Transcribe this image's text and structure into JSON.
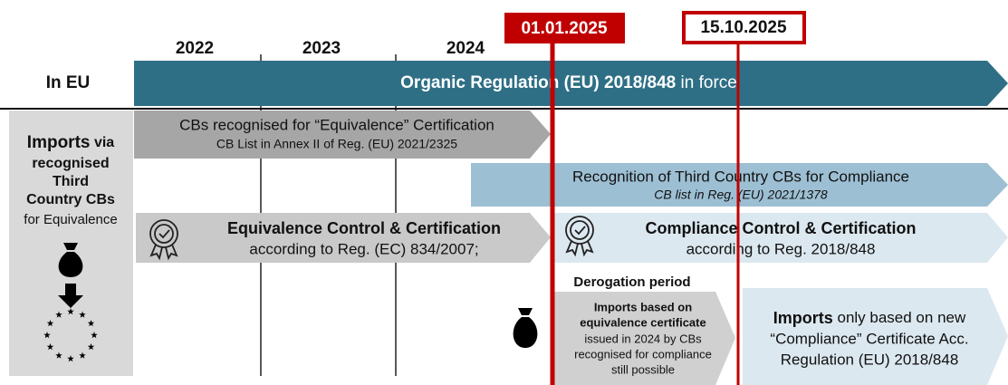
{
  "years": [
    "2022",
    "2023",
    "2024"
  ],
  "milestones": [
    "01.01.2025",
    "15.10.2025"
  ],
  "row_label": "In EU",
  "regulation": {
    "title": "Organic Regulation (EU) 2018/848",
    "suffix": "in force"
  },
  "sidebar": {
    "heading": "Imports",
    "lines": [
      "via",
      "recognised",
      "Third",
      "Country CBs"
    ],
    "note": "for Equivalence"
  },
  "equivalence_cbs": {
    "title": "CBs recognised for “Equivalence” Certification",
    "subtitle": "CB List in Annex II of Reg. (EU) 2021/2325"
  },
  "compliance_cbs": {
    "title": "Recognition of Third Country CBs for Compliance",
    "subtitle": "CB list in Reg. (EU) 2021/1378"
  },
  "equivalence_control": {
    "title": "Equivalence Control & Certification",
    "subtitle": "according to Reg. (EC) 834/2007;"
  },
  "compliance_control": {
    "title": "Compliance Control & Certification",
    "subtitle": "according to Reg. 2018/848"
  },
  "derogation": {
    "label": "Derogation period",
    "bold_lines": [
      "Imports based on",
      "equivalence certificate"
    ],
    "lines": [
      "issued in 2024 by CBs",
      "recognised for compliance",
      "still possible"
    ]
  },
  "new_imports": {
    "heading": "Imports",
    "first_line": "only based on new",
    "lines": [
      "“Compliance” Certificate Acc.",
      "Regulation (EU) 2018/848"
    ]
  }
}
